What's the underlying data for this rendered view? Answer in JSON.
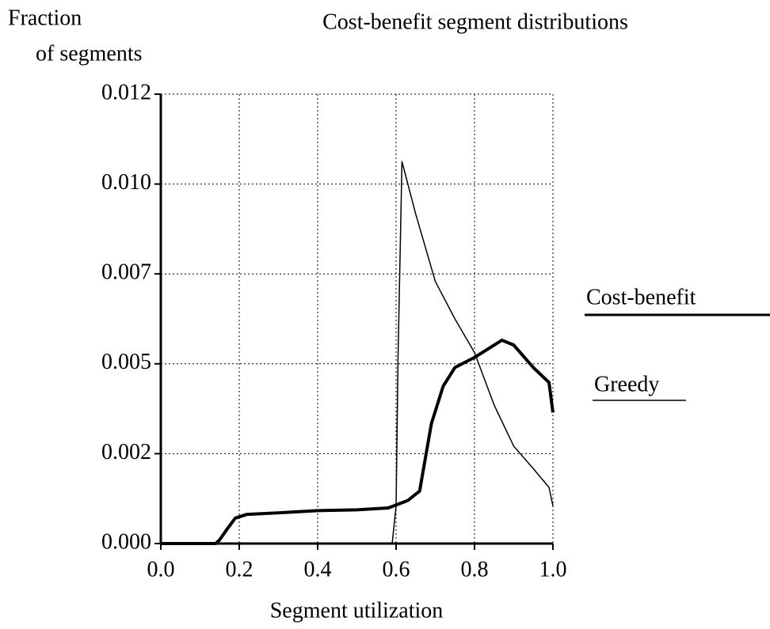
{
  "chart_data": {
    "type": "line",
    "title": "Cost-benefit segment distributions",
    "ylabel": [
      "Fraction",
      "of segments"
    ],
    "xlabel": "Segment utilization",
    "xlim": [
      0,
      1
    ],
    "ylim": [
      0,
      0.012
    ],
    "xticks": [
      {
        "value": 0,
        "label": "0.0"
      },
      0.2,
      0.4,
      0.6,
      0.8,
      {
        "value": 1,
        "label": "1.0"
      }
    ],
    "yticks": [
      {
        "value": 0,
        "label": "0.000"
      },
      {
        "value": 0.0024,
        "label": "0.002"
      },
      {
        "value": 0.0048,
        "label": "0.005"
      },
      {
        "value": 0.0072,
        "label": "0.007"
      },
      {
        "value": 0.0096,
        "label": "0.010"
      },
      {
        "value": 0.012,
        "label": "0.012"
      }
    ],
    "grid": true,
    "series": [
      {
        "name": "Cost-benefit",
        "color": "#000",
        "width": 4,
        "x": [
          0,
          0.14,
          0.15,
          0.17,
          0.19,
          0.22,
          0.3,
          0.4,
          0.5,
          0.58,
          0.63,
          0.66,
          0.67,
          0.69,
          0.72,
          0.75,
          0.8,
          0.85,
          0.87,
          0.9,
          0.95,
          0.99,
          1.0
        ],
        "values": [
          0,
          0,
          0.0001,
          0.0004,
          0.00068,
          0.00078,
          0.00082,
          0.00088,
          0.0009,
          0.00095,
          0.00115,
          0.0014,
          0.002,
          0.0032,
          0.0042,
          0.0047,
          0.00497,
          0.0053,
          0.00543,
          0.0053,
          0.0047,
          0.0043,
          0.0035
        ]
      },
      {
        "name": "Greedy",
        "color": "#000",
        "width": 1.5,
        "x": [
          0.59,
          0.6,
          0.605,
          0.615,
          0.65,
          0.7,
          0.75,
          0.8,
          0.85,
          0.9,
          0.95,
          0.99,
          1.0
        ],
        "values": [
          0,
          0.001,
          0.005,
          0.0102,
          0.0088,
          0.007,
          0.006,
          0.0051,
          0.0037,
          0.0026,
          0.002,
          0.0015,
          0.001
        ]
      }
    ]
  }
}
